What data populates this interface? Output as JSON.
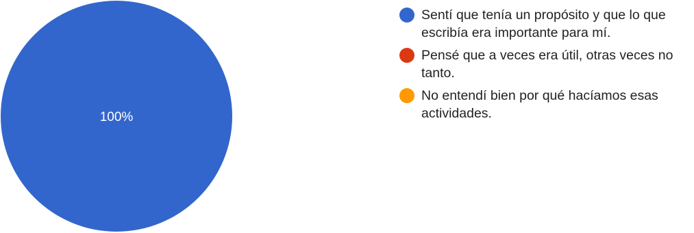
{
  "chart_data": {
    "type": "pie",
    "categories": [
      "Sentí que tenía un propósito y que lo que escribía era importante para mí.",
      "Pensé que a veces era útil, otras veces no tanto.",
      "No entendí bien por qué hacíamos esas actividades."
    ],
    "values": [
      100,
      0,
      0
    ],
    "slice_labels": [
      "100%",
      "",
      ""
    ],
    "colors": [
      "#3366cc",
      "#dc3912",
      "#ff9900"
    ],
    "legend_position": "right"
  }
}
